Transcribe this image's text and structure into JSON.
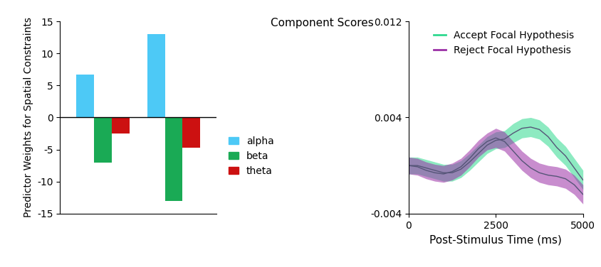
{
  "chart_data": [
    {
      "type": "bar",
      "y_label": "Predictor Weights for Spatial Constraints",
      "categories": [
        null,
        null
      ],
      "series": [
        {
          "name": "alpha",
          "color": "#4dc9f6",
          "values": [
            6.7,
            13.0
          ]
        },
        {
          "name": "beta",
          "color": "#1aaa55",
          "values": [
            -7.0,
            -13.0
          ]
        },
        {
          "name": "theta",
          "color": "#cc1111",
          "values": [
            -2.5,
            -4.7
          ]
        }
      ],
      "ylim": [
        -15,
        15
      ],
      "yticks": [
        -15,
        -10,
        -5,
        0,
        5,
        10,
        15
      ],
      "legend": "center left"
    },
    {
      "type": "line",
      "y_label": "Component Scores",
      "x_label": "Post-Stimulus Time (ms)",
      "x": [
        0,
        250,
        500,
        750,
        1000,
        1250,
        1500,
        1750,
        2000,
        2250,
        2500,
        2750,
        3000,
        3250,
        3500,
        3750,
        4000,
        4250,
        4500,
        4750,
        5000
      ],
      "series": [
        {
          "name": "Accept Focal Hypothesis",
          "color": "#2fd98f",
          "values": [
            0.0,
            0.0,
            -0.0002,
            -0.0004,
            -0.0006,
            -0.0006,
            -0.0003,
            0.0003,
            0.001,
            0.0017,
            0.0021,
            0.0022,
            0.0027,
            0.0031,
            0.0032,
            0.003,
            0.0024,
            0.0015,
            0.0008,
            -0.0002,
            -0.0012
          ],
          "errors": [
            0.0007,
            0.0007,
            0.0007,
            0.0007,
            0.0007,
            0.0007,
            0.0007,
            0.0007,
            0.0007,
            0.0007,
            0.0007,
            0.0007,
            0.0008,
            0.0008,
            0.0008,
            0.0008,
            0.0008,
            0.0008,
            0.0008,
            0.0008,
            0.0008
          ]
        },
        {
          "name": "Reject Focal Hypothesis",
          "color": "#9b2fa6",
          "values": [
            0.0,
            -0.0001,
            -0.0004,
            -0.0006,
            -0.0007,
            -0.0005,
            -0.0001,
            0.0006,
            0.0014,
            0.002,
            0.0023,
            0.002,
            0.0012,
            0.0004,
            -0.0002,
            -0.0006,
            -0.0008,
            -0.0009,
            -0.0011,
            -0.0016,
            -0.0024
          ],
          "errors": [
            0.0007,
            0.0007,
            0.0007,
            0.0007,
            0.0007,
            0.0007,
            0.0007,
            0.0007,
            0.0007,
            0.0007,
            0.0008,
            0.0008,
            0.0008,
            0.0008,
            0.0008,
            0.0008,
            0.0008,
            0.0008,
            0.0008,
            0.0008,
            0.0008
          ]
        }
      ],
      "xlim": [
        0,
        5000
      ],
      "xticks": [
        0,
        2500,
        5000
      ],
      "ylim": [
        -0.004,
        0.012
      ],
      "yticks": [
        -0.004,
        0.004,
        0.012
      ],
      "legend": "upper right"
    }
  ]
}
